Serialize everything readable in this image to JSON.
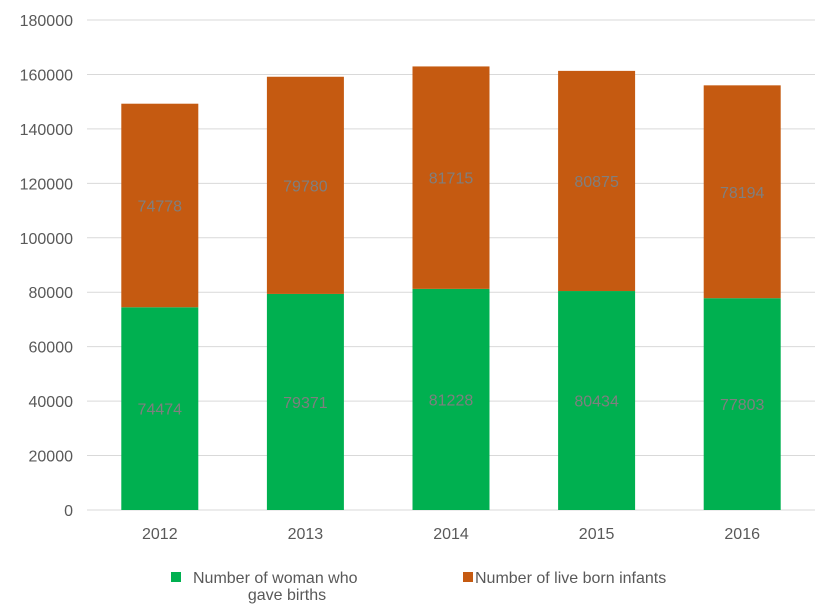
{
  "chart_data": {
    "type": "bar",
    "stacked": true,
    "categories": [
      "2012",
      "2013",
      "2014",
      "2015",
      "2016"
    ],
    "series": [
      {
        "name": "Number of woman who gave births",
        "name_lines": [
          "Number of woman who",
          "gave births"
        ],
        "color": "#00b050",
        "values": [
          74474,
          79371,
          81228,
          80434,
          77803
        ]
      },
      {
        "name": "Number of live born infants",
        "name_lines": [
          "Number of live born infants"
        ],
        "color": "#c55a11",
        "values": [
          74778,
          79780,
          81715,
          80875,
          78194
        ]
      }
    ],
    "ylim": [
      0,
      180000
    ],
    "yticks": [
      0,
      20000,
      40000,
      60000,
      80000,
      100000,
      120000,
      140000,
      160000,
      180000
    ],
    "ytick_labels": [
      "0",
      "20000",
      "40000",
      "60000",
      "80000",
      "100000",
      "120000",
      "140000",
      "160000",
      "180000"
    ],
    "grid": true,
    "legend_position": "bottom",
    "title": "",
    "xlabel": "",
    "ylabel": ""
  }
}
